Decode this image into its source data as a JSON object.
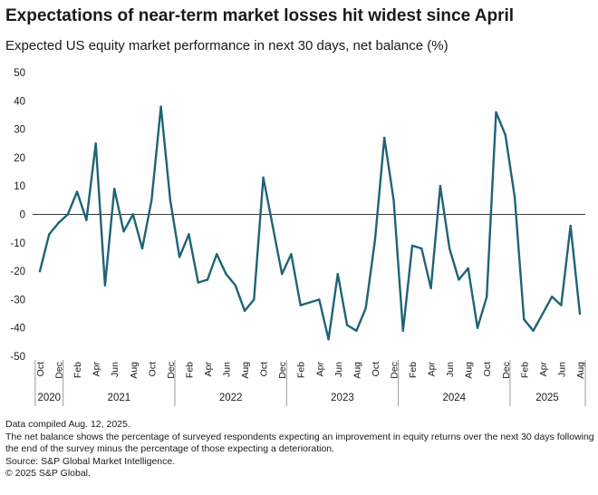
{
  "header": {
    "title": "Expectations of near-term market losses hit widest since April",
    "subtitle": "Expected US equity market performance in next 30 days, net balance (%)"
  },
  "chart_data": {
    "type": "line",
    "title": "Expectations of near-term market losses hit widest since April",
    "subtitle": "Expected US equity market performance in next 30 days, net balance (%)",
    "xlabel": "",
    "ylabel": "",
    "ylim": [
      -50,
      50
    ],
    "yticks": [
      50,
      40,
      30,
      20,
      10,
      0,
      -10,
      -20,
      -30,
      -40,
      -50
    ],
    "grid": false,
    "line_color": "#1e6477",
    "x_start": "Oct 2020",
    "x_tick_labels": [
      "Oct",
      "Dec",
      "Feb",
      "Apr",
      "Jun",
      "Aug",
      "Oct",
      "Dec",
      "Feb",
      "Apr",
      "Jun",
      "Aug",
      "Oct",
      "Dec",
      "Feb",
      "Apr",
      "Jun",
      "Aug",
      "Oct",
      "Dec",
      "Feb",
      "Apr",
      "Jun",
      "Aug",
      "Oct",
      "Dec",
      "Feb",
      "Apr",
      "Jun",
      "Aug"
    ],
    "years": [
      {
        "label": "2020",
        "start_index": 0,
        "end_index": 2
      },
      {
        "label": "2021",
        "start_index": 3,
        "end_index": 14
      },
      {
        "label": "2022",
        "start_index": 15,
        "end_index": 26
      },
      {
        "label": "2023",
        "start_index": 27,
        "end_index": 38
      },
      {
        "label": "2024",
        "start_index": 39,
        "end_index": 50
      },
      {
        "label": "2025",
        "start_index": 51,
        "end_index": 58
      }
    ],
    "series": [
      {
        "name": "Net balance (%)",
        "values": [
          -20,
          -7,
          -3,
          0,
          8,
          -2,
          25,
          -25,
          9,
          -6,
          0,
          -12,
          5,
          38,
          5,
          -15,
          -7,
          -24,
          -23,
          -14,
          -21,
          -25,
          -34,
          -30,
          13,
          -4,
          -21,
          -14,
          -32,
          -31,
          -30,
          -44,
          -21,
          -39,
          -41,
          -33,
          -9,
          27,
          5,
          -41,
          -11,
          -12,
          -26,
          10,
          -12,
          -23,
          -19,
          -40,
          -29,
          36,
          28,
          6,
          -37,
          -41,
          -35,
          -29,
          -32,
          -4,
          -35
        ]
      }
    ]
  },
  "footnotes": {
    "line1": "Data compiled Aug. 12, 2025.",
    "line2": "The net balance shows the percentage of surveyed respondents expecting an improvement in equity returns over the next 30 days following the end of the survey minus the percentage of those expecting a deterioration.",
    "line3": "Source: S&P Global Market Intelligence.",
    "line4": "© 2025 S&P Global."
  }
}
